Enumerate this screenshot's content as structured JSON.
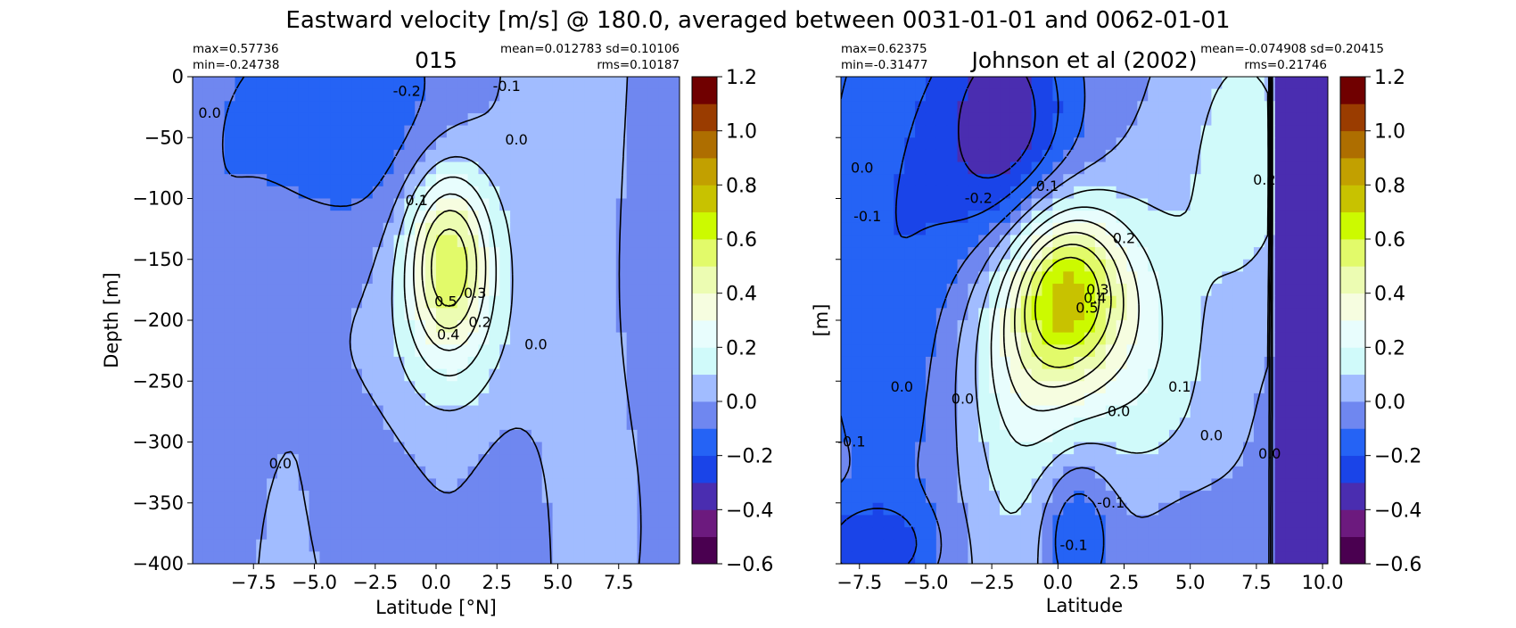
{
  "figure": {
    "suptitle": "Eastward velocity [m/s] @ 180.0, averaged between 0031-01-01 and 0062-01-01"
  },
  "chart_data": [
    {
      "type": "heatmap",
      "title": "015",
      "stats": {
        "max": "max=0.57736",
        "min": "min=-0.24738",
        "mean_sd": "mean=0.012783 sd=0.10106",
        "rms": "rms=0.10187"
      },
      "xlabel": "Latitude [°N]",
      "ylabel": "Depth [m]",
      "xlim": [
        -10,
        10
      ],
      "ylim": [
        -400,
        0
      ],
      "xticks": [
        -7.5,
        -5.0,
        -2.5,
        0.0,
        2.5,
        5.0,
        7.5
      ],
      "xtick_labels": [
        "−7.5",
        "−5.0",
        "−2.5",
        "0.0",
        "2.5",
        "5.0",
        "7.5"
      ],
      "yticks": [
        0,
        -50,
        -100,
        -150,
        -200,
        -250,
        -300,
        -350,
        -400
      ],
      "ytick_labels": [
        "0",
        "−50",
        "−100",
        "−150",
        "−200",
        "−250",
        "−300",
        "−350",
        "−400"
      ],
      "ytick_labels_visible": true,
      "contour_labels": [
        {
          "text": "-0.2",
          "x": -1.2,
          "y": -12
        },
        {
          "text": "-0.1",
          "x": 2.9,
          "y": -8
        },
        {
          "text": "0.0",
          "x": -9.3,
          "y": -30
        },
        {
          "text": "0.0",
          "x": 3.3,
          "y": -52
        },
        {
          "text": "0.1",
          "x": -0.8,
          "y": -102
        },
        {
          "text": "0.5",
          "x": 0.4,
          "y": -185
        },
        {
          "text": "0.3",
          "x": 1.6,
          "y": -178
        },
        {
          "text": "0.2",
          "x": 1.8,
          "y": -202
        },
        {
          "text": "0.4",
          "x": 0.5,
          "y": -212
        },
        {
          "text": "0.0",
          "x": 4.1,
          "y": -220
        },
        {
          "text": "0.0",
          "x": -6.4,
          "y": -318
        }
      ]
    },
    {
      "type": "heatmap",
      "title": "Johnson et al (2002)",
      "stats": {
        "max": "max=0.62375",
        "min": "min=-0.31477",
        "mean_sd": "mean=-0.074908 sd=0.20415",
        "rms": "rms=0.21746"
      },
      "xlabel": "Latitude",
      "ylabel": "[m]",
      "xlim": [
        -8.2,
        10.2
      ],
      "ylim": [
        -400,
        0
      ],
      "xticks": [
        -7.5,
        -5.0,
        -2.5,
        0.0,
        2.5,
        5.0,
        7.5,
        10.0
      ],
      "xtick_labels": [
        "−7.5",
        "−5.0",
        "−2.5",
        "0.0",
        "2.5",
        "5.0",
        "7.5",
        "10.0"
      ],
      "yticks": [
        0,
        -50,
        -100,
        -150,
        -200,
        -250,
        -300,
        -350,
        -400
      ],
      "ytick_labels": [],
      "ytick_labels_visible": false,
      "contour_labels": [
        {
          "text": "0.0",
          "x": -7.4,
          "y": -75
        },
        {
          "text": "-0.1",
          "x": -7.2,
          "y": -115
        },
        {
          "text": "-0.2",
          "x": -3.0,
          "y": -100
        },
        {
          "text": "0.1",
          "x": -0.4,
          "y": -90
        },
        {
          "text": "0.2",
          "x": 2.5,
          "y": -133
        },
        {
          "text": "0.2",
          "x": 7.8,
          "y": -85
        },
        {
          "text": "0.3",
          "x": 1.5,
          "y": -175
        },
        {
          "text": "0.5",
          "x": 1.1,
          "y": -190
        },
        {
          "text": "0.4",
          "x": 1.4,
          "y": -182
        },
        {
          "text": "0.0",
          "x": -5.9,
          "y": -255
        },
        {
          "text": "0.0",
          "x": -3.6,
          "y": -265
        },
        {
          "text": "0.1",
          "x": 4.6,
          "y": -255
        },
        {
          "text": "0.0",
          "x": 2.3,
          "y": -275
        },
        {
          "text": "0.0",
          "x": 5.8,
          "y": -295
        },
        {
          "text": "0.0",
          "x": 8.0,
          "y": -310
        },
        {
          "text": "-0.1",
          "x": -7.8,
          "y": -300
        },
        {
          "text": "-0.1",
          "x": 2.0,
          "y": -350
        },
        {
          "text": "-0.1",
          "x": 0.6,
          "y": -385
        }
      ]
    }
  ],
  "colorbar": {
    "levels": [
      -0.6,
      -0.5,
      -0.4,
      -0.3,
      -0.2,
      -0.1,
      0.0,
      0.1,
      0.2,
      0.3,
      0.4,
      0.5,
      0.6,
      0.7,
      0.8,
      0.9,
      1.0,
      1.1,
      1.2
    ],
    "colors": [
      "#4a0050",
      "#6c1a7e",
      "#4a2db0",
      "#1a44e8",
      "#2563f5",
      "#6f87f0",
      "#a1bcff",
      "#d0fafa",
      "#e8fdfd",
      "#f6fde0",
      "#ecfcb2",
      "#e2fa6a",
      "#ccfa00",
      "#c8c200",
      "#c2a000",
      "#ae6e00",
      "#9a3c00",
      "#700000"
    ],
    "tick_values": [
      -0.6,
      -0.4,
      -0.2,
      0.0,
      0.2,
      0.4,
      0.6,
      0.8,
      1.0,
      1.2
    ],
    "tick_labels": [
      "−0.6",
      "−0.4",
      "−0.2",
      "0.0",
      "0.2",
      "0.4",
      "0.6",
      "0.8",
      "1.0",
      "1.2"
    ]
  }
}
